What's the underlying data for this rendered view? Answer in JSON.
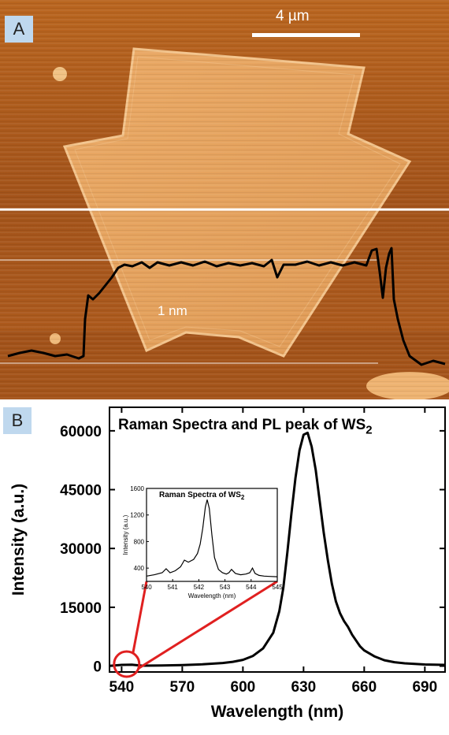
{
  "panel_a": {
    "label": "A",
    "scale_bar_label": "4 µm",
    "height_label": "1 nm"
  },
  "panel_b": {
    "label": "B"
  },
  "colors": {
    "afm_dark": "#5a2a08",
    "afm_mid": "#a8581a",
    "afm_bright": "#e09a4c",
    "flake": "#e7a45e",
    "inset_callout": "#e02020",
    "trace": "#000000"
  },
  "chart_data": [
    {
      "type": "line",
      "title": "Raman Spectra and PL peak of WS2",
      "title_main": "Raman Spectra and PL peak of WS",
      "title_sub": "2",
      "xlabel": "Wavelength (nm)",
      "ylabel": "Intensity (a.u.)",
      "xlim": [
        534,
        700
      ],
      "ylim": [
        -1500,
        66000
      ],
      "xticks": [
        540,
        570,
        600,
        630,
        660,
        690
      ],
      "yticks": [
        0,
        15000,
        30000,
        45000,
        60000
      ],
      "series": [
        {
          "x": [
            534,
            540,
            545,
            550,
            560,
            570,
            580,
            590,
            595,
            600,
            605,
            610,
            615,
            618,
            620,
            622,
            624,
            626,
            628,
            630,
            632,
            634,
            636,
            638,
            640,
            642,
            644,
            646,
            648,
            650,
            652,
            654,
            656,
            658,
            660,
            665,
            670,
            675,
            680,
            690,
            700
          ],
          "y": [
            50,
            300,
            350,
            100,
            150,
            250,
            450,
            800,
            1100,
            1600,
            2600,
            4500,
            8500,
            14000,
            20000,
            29000,
            39000,
            48000,
            55000,
            59000,
            59500,
            56000,
            50000,
            42000,
            34000,
            27000,
            21000,
            16500,
            13500,
            11500,
            10000,
            8000,
            6500,
            5000,
            4000,
            2500,
            1500,
            1000,
            700,
            400,
            300
          ]
        }
      ]
    },
    {
      "type": "line",
      "title": "Raman Spectra of WS2",
      "title_main": "Raman Spectra of WS",
      "title_sub": "2",
      "xlabel": "Wavelength (nm)",
      "ylabel": "Intensity (a.u.)",
      "xlim": [
        540,
        545
      ],
      "ylim": [
        200,
        1600
      ],
      "xticks": [
        540,
        541,
        542,
        543,
        544,
        545
      ],
      "yticks": [
        400,
        800,
        1200,
        1600
      ],
      "ytick_labels": [
        "400",
        "800",
        "1200",
        "1600"
      ],
      "series": [
        {
          "x": [
            540.0,
            540.3,
            540.6,
            540.75,
            540.9,
            541.1,
            541.3,
            541.45,
            541.6,
            541.8,
            541.95,
            542.05,
            542.15,
            542.25,
            542.32,
            542.4,
            542.5,
            542.6,
            542.75,
            542.9,
            543.05,
            543.15,
            543.25,
            543.4,
            543.6,
            543.8,
            543.95,
            544.05,
            544.15,
            544.3,
            544.5,
            544.7,
            545.0
          ],
          "y": [
            280,
            300,
            330,
            390,
            330,
            360,
            420,
            520,
            490,
            530,
            620,
            760,
            1000,
            1320,
            1430,
            1300,
            900,
            560,
            380,
            330,
            310,
            330,
            380,
            320,
            300,
            310,
            330,
            400,
            320,
            290,
            280,
            275,
            270
          ]
        }
      ]
    }
  ]
}
